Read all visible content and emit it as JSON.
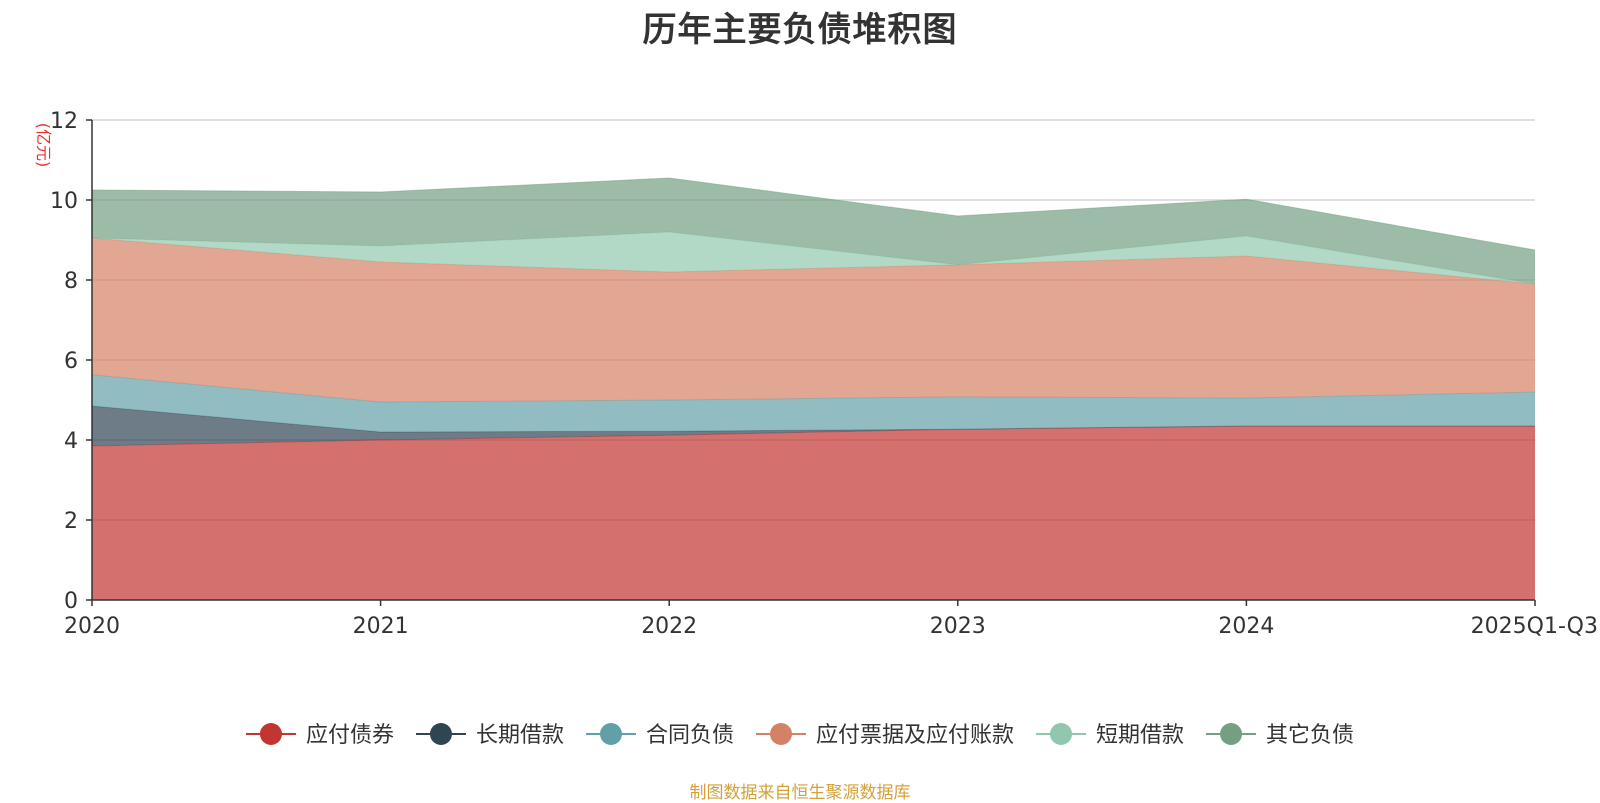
{
  "title": "历年主要负债堆积图",
  "source_note": "制图数据来自恒生聚源数据库",
  "chart_data": {
    "type": "area",
    "stacked": true,
    "title": "历年主要负债堆积图",
    "ylabel": "(亿元)",
    "xlabel": "",
    "categories": [
      "2020",
      "2021",
      "2022",
      "2023",
      "2024",
      "2025Q1-Q3"
    ],
    "ylim": [
      0,
      12
    ],
    "yticks": [
      0,
      2,
      4,
      6,
      8,
      10,
      12
    ],
    "grid": true,
    "legend_position": "bottom",
    "series": [
      {
        "name": "应付债券",
        "color": "#c23531",
        "values": [
          3.85,
          4.0,
          4.12,
          4.27,
          4.35,
          4.35
        ]
      },
      {
        "name": "长期借款",
        "color": "#2f4554",
        "values": [
          1.0,
          0.2,
          0.1,
          0.0,
          0.0,
          0.0
        ]
      },
      {
        "name": "合同负债",
        "color": "#61a0a8",
        "values": [
          0.78,
          0.75,
          0.78,
          0.81,
          0.7,
          0.85
        ]
      },
      {
        "name": "应付票据及应付账款",
        "color": "#d48265",
        "values": [
          3.42,
          3.5,
          3.2,
          3.3,
          3.55,
          2.7
        ]
      },
      {
        "name": "短期借款",
        "color": "#91c7ae",
        "values": [
          0.0,
          0.4,
          1.0,
          0.0,
          0.5,
          0.0
        ]
      },
      {
        "name": "其它负债",
        "color": "#749f83",
        "values": [
          1.2,
          1.35,
          1.35,
          1.22,
          0.92,
          0.85
        ]
      }
    ]
  }
}
